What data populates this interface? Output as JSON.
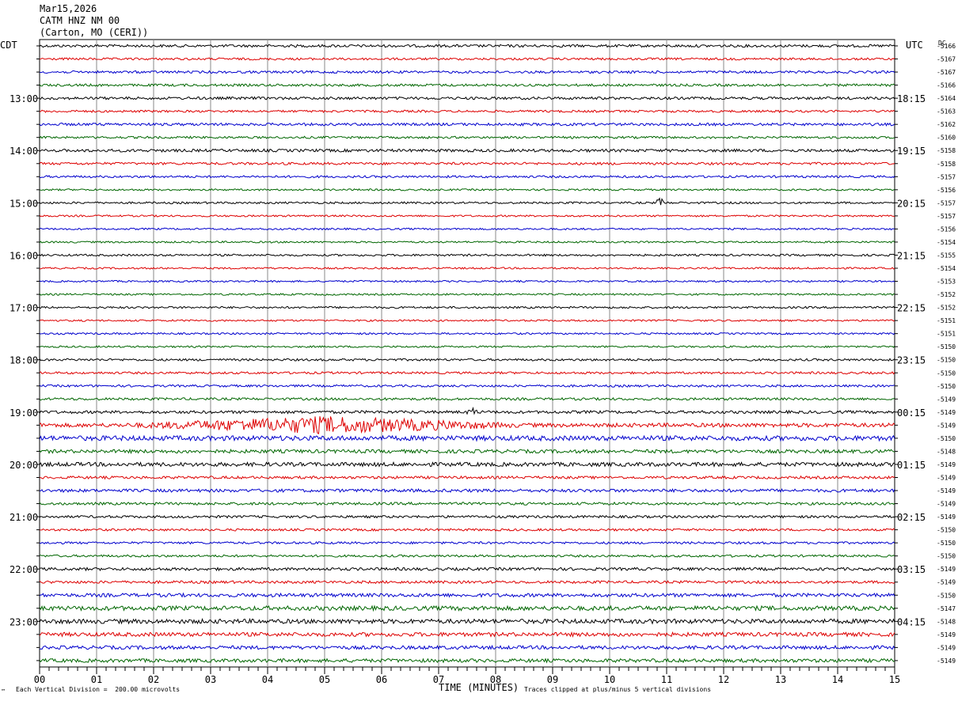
{
  "header": {
    "date": "Mar15,2026",
    "station": "CATM HNZ NM 00",
    "location": "(Carton, MO (CERI))"
  },
  "chart_data": {
    "type": "line",
    "title": "",
    "left_zone_label": "CDT",
    "right_zone_label": "UTC",
    "dc_label": "DC",
    "xlabel": "TIME (MINUTES)",
    "x_ticks": [
      "00",
      "01",
      "02",
      "03",
      "04",
      "05",
      "06",
      "07",
      "08",
      "09",
      "10",
      "11",
      "12",
      "13",
      "14",
      "15"
    ],
    "xlim": [
      0,
      15
    ],
    "left_hour_labels": [
      "13:00",
      "14:00",
      "15:00",
      "16:00",
      "17:00",
      "18:00",
      "19:00",
      "20:00",
      "21:00",
      "22:00",
      "23:00"
    ],
    "right_hour_labels": [
      "18:15",
      "19:15",
      "20:15",
      "21:15",
      "22:15",
      "23:15",
      "00:15",
      "01:15",
      "02:15",
      "03:15",
      "04:15"
    ],
    "hour_label_start_row": 4,
    "rows_per_hour": 4,
    "dc_offsets": [
      "-5166",
      "-5167",
      "-5167",
      "-5166",
      "-5164",
      "-5163",
      "-5162",
      "-5160",
      "-5158",
      "-5158",
      "-5157",
      "-5156",
      "-5157",
      "-5157",
      "-5156",
      "-5154",
      "-5155",
      "-5154",
      "-5153",
      "-5152",
      "-5152",
      "-5151",
      "-5151",
      "-5150",
      "-5150",
      "-5150",
      "-5150",
      "-5149",
      "-5149",
      "-5149",
      "-5150",
      "-5148",
      "-5149",
      "-5149",
      "-5149",
      "-5149",
      "-5149",
      "-5150",
      "-5150",
      "-5150",
      "-5149",
      "-5149",
      "-5150",
      "-5147",
      "-5148",
      "-5149",
      "-5149",
      "-5149"
    ],
    "trace_colors": [
      "#000000",
      "#dd0000",
      "#0000cc",
      "#006600"
    ],
    "row_noise": [
      1.2,
      1.0,
      1.1,
      1.1,
      1.2,
      1.0,
      1.2,
      1.0,
      1.3,
      1.1,
      1.0,
      0.8,
      0.9,
      0.8,
      0.8,
      0.8,
      0.9,
      0.8,
      0.8,
      0.8,
      0.9,
      0.8,
      0.8,
      0.8,
      1.0,
      1.0,
      1.0,
      1.1,
      1.3,
      1.8,
      2.2,
      1.6,
      1.8,
      1.2,
      1.4,
      1.2,
      1.1,
      1.0,
      1.0,
      1.0,
      1.3,
      1.2,
      1.6,
      2.0,
      2.0,
      1.8,
      1.6,
      1.6
    ],
    "events": [
      {
        "row": 12,
        "minute": 10.9,
        "amplitude": 6
      },
      {
        "row": 29,
        "minute": 5.0,
        "amplitude": 9,
        "span": 3.5
      },
      {
        "row": 28,
        "minute": 7.6,
        "amplitude": 4
      }
    ],
    "grid": true
  },
  "footer": {
    "scale": "Each Vertical Division =  200.00 microvolts",
    "clip_note": "Traces clipped at plus/minus 5 vertical divisions",
    "corner_mark": "™"
  }
}
